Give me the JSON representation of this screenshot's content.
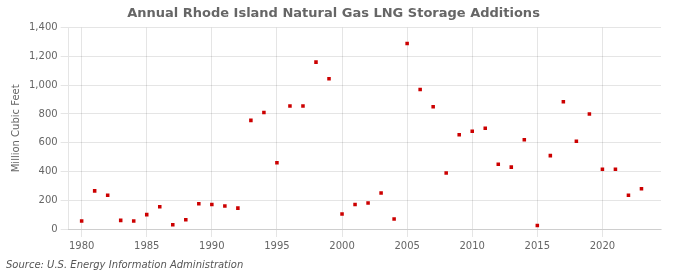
{
  "chart_data": {
    "type": "scatter",
    "title": "Annual Rhode Island Natural Gas LNG Storage Additions",
    "y_label": "Million Cubic Feet",
    "annotations": [
      "Source: U.S. Energy Information Administration"
    ],
    "x": [
      1980,
      1981,
      1982,
      1983,
      1984,
      1985,
      1986,
      1987,
      1988,
      1989,
      1990,
      1991,
      1992,
      1993,
      1994,
      1995,
      1996,
      1997,
      1998,
      1999,
      2000,
      2001,
      2002,
      2003,
      2004,
      2005,
      2006,
      2007,
      2008,
      2009,
      2010,
      2011,
      2012,
      2013,
      2014,
      2015,
      2016,
      2017,
      2018,
      2019,
      2020,
      2021,
      2022,
      2023
    ],
    "values": [
      55,
      265,
      235,
      60,
      55,
      100,
      155,
      30,
      65,
      175,
      170,
      160,
      145,
      755,
      810,
      460,
      855,
      855,
      1160,
      1045,
      105,
      170,
      180,
      250,
      70,
      1290,
      970,
      850,
      390,
      655,
      680,
      700,
      450,
      430,
      620,
      25,
      510,
      885,
      610,
      800,
      415,
      415,
      235,
      280
    ],
    "color": "#cc0000",
    "marker": "square",
    "xlim": [
      1979,
      2024.5
    ],
    "xticks": [
      1980,
      1985,
      1990,
      1995,
      2000,
      2005,
      2010,
      2015,
      2020
    ],
    "ylim": [
      0,
      1400
    ],
    "yticks": [
      0,
      200,
      400,
      600,
      800,
      {
        "value": 1000,
        "label": "1,000"
      },
      {
        "value": 1200,
        "label": "1,200"
      },
      {
        "value": 1400,
        "label": "1,400"
      }
    ],
    "grid": true
  }
}
